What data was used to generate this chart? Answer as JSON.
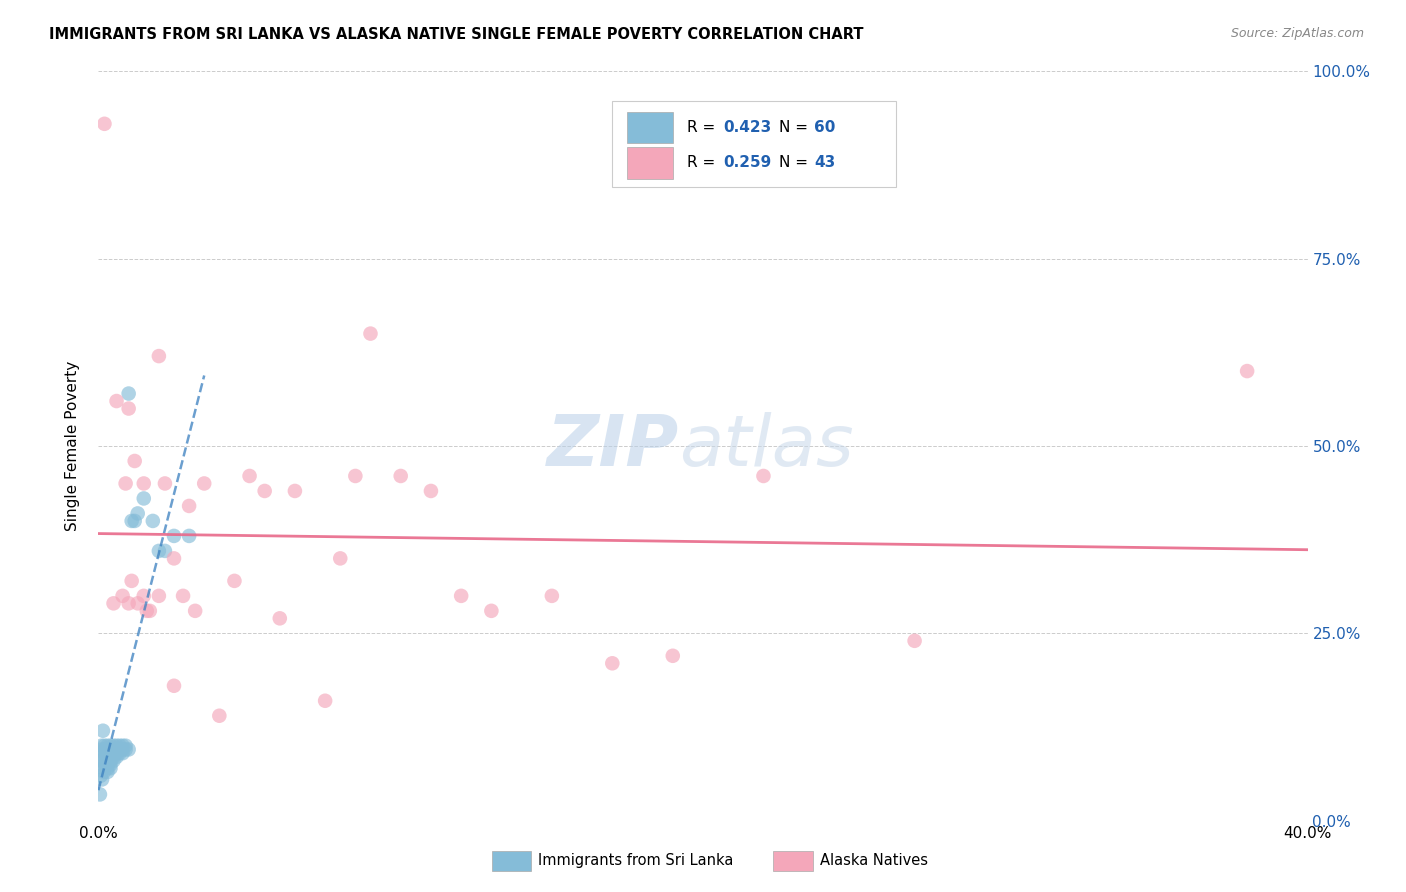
{
  "title": "IMMIGRANTS FROM SRI LANKA VS ALASKA NATIVE SINGLE FEMALE POVERTY CORRELATION CHART",
  "source": "Source: ZipAtlas.com",
  "ylabel": "Single Female Poverty",
  "xlim": [
    0.0,
    0.4
  ],
  "ylim": [
    0.0,
    1.0
  ],
  "xticks": [
    0.0,
    0.1,
    0.2,
    0.3,
    0.4
  ],
  "yticks": [
    0.0,
    0.25,
    0.5,
    0.75,
    1.0
  ],
  "ytick_labels_right": [
    "0.0%",
    "25.0%",
    "50.0%",
    "75.0%",
    "100.0%"
  ],
  "r1": "0.423",
  "n1": "60",
  "r2": "0.259",
  "n2": "43",
  "legend_label1": "Immigrants from Sri Lanka",
  "legend_label2": "Alaska Natives",
  "blue_color": "#85bcd8",
  "pink_color": "#f4a7ba",
  "blue_line_color": "#3a7fbf",
  "pink_line_color": "#e8698a",
  "r_value_color": "#2060b0",
  "watermark_zip_color": "#b8cfe8",
  "watermark_atlas_color": "#c8d8ea",
  "sri_lanka_x": [
    0.0005,
    0.0008,
    0.001,
    0.001,
    0.0012,
    0.0012,
    0.0015,
    0.0015,
    0.0015,
    0.0018,
    0.002,
    0.002,
    0.002,
    0.002,
    0.002,
    0.0025,
    0.0025,
    0.003,
    0.003,
    0.003,
    0.003,
    0.003,
    0.003,
    0.003,
    0.003,
    0.004,
    0.004,
    0.004,
    0.004,
    0.004,
    0.004,
    0.004,
    0.005,
    0.005,
    0.005,
    0.005,
    0.005,
    0.006,
    0.006,
    0.006,
    0.006,
    0.007,
    0.007,
    0.007,
    0.008,
    0.008,
    0.008,
    0.009,
    0.009,
    0.01,
    0.01,
    0.011,
    0.012,
    0.013,
    0.015,
    0.018,
    0.02,
    0.022,
    0.025,
    0.03
  ],
  "sri_lanka_y": [
    0.035,
    0.06,
    0.08,
    0.1,
    0.055,
    0.095,
    0.07,
    0.08,
    0.12,
    0.065,
    0.075,
    0.085,
    0.09,
    0.095,
    0.1,
    0.075,
    0.095,
    0.065,
    0.07,
    0.075,
    0.08,
    0.085,
    0.09,
    0.095,
    0.1,
    0.07,
    0.075,
    0.08,
    0.085,
    0.09,
    0.095,
    0.1,
    0.08,
    0.085,
    0.09,
    0.095,
    0.1,
    0.085,
    0.09,
    0.095,
    0.1,
    0.09,
    0.095,
    0.1,
    0.09,
    0.095,
    0.1,
    0.095,
    0.1,
    0.095,
    0.57,
    0.4,
    0.4,
    0.41,
    0.43,
    0.4,
    0.36,
    0.36,
    0.38,
    0.38
  ],
  "alaska_x": [
    0.002,
    0.005,
    0.006,
    0.008,
    0.009,
    0.01,
    0.01,
    0.011,
    0.012,
    0.013,
    0.015,
    0.015,
    0.016,
    0.017,
    0.02,
    0.02,
    0.022,
    0.025,
    0.025,
    0.028,
    0.03,
    0.032,
    0.035,
    0.04,
    0.045,
    0.05,
    0.055,
    0.06,
    0.065,
    0.075,
    0.08,
    0.085,
    0.09,
    0.1,
    0.11,
    0.12,
    0.13,
    0.15,
    0.17,
    0.19,
    0.22,
    0.27,
    0.38
  ],
  "alaska_y": [
    0.93,
    0.29,
    0.56,
    0.3,
    0.45,
    0.29,
    0.55,
    0.32,
    0.48,
    0.29,
    0.3,
    0.45,
    0.28,
    0.28,
    0.3,
    0.62,
    0.45,
    0.18,
    0.35,
    0.3,
    0.42,
    0.28,
    0.45,
    0.14,
    0.32,
    0.46,
    0.44,
    0.27,
    0.44,
    0.16,
    0.35,
    0.46,
    0.65,
    0.46,
    0.44,
    0.3,
    0.28,
    0.3,
    0.21,
    0.22,
    0.46,
    0.24,
    0.6
  ]
}
